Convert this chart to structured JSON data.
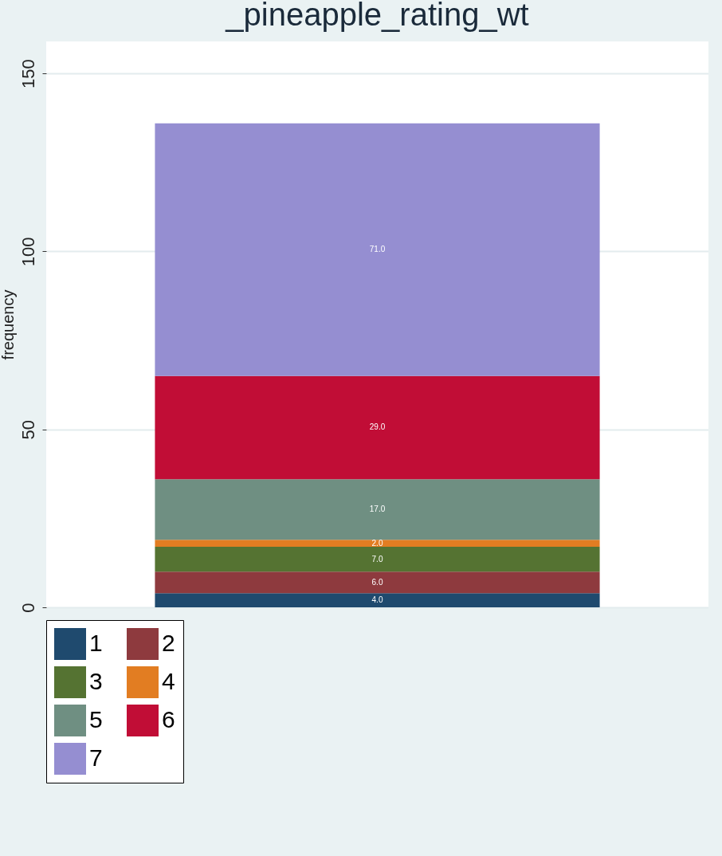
{
  "chart_data": {
    "type": "bar",
    "title": "_pineapple_rating_wt",
    "ylabel": "frequency",
    "categories": [
      null
    ],
    "stacked": true,
    "ylim": [
      0,
      159
    ],
    "yticks": [
      0,
      50,
      100,
      150
    ],
    "grid": "y",
    "legend": "bottom",
    "series": [
      {
        "name": "1",
        "color": "#1f4a6e",
        "values": [
          4
        ],
        "value_labels": [
          "4.0"
        ]
      },
      {
        "name": "2",
        "color": "#8e3a3e",
        "values": [
          6
        ],
        "value_labels": [
          "6.0"
        ]
      },
      {
        "name": "3",
        "color": "#557332",
        "values": [
          7
        ],
        "value_labels": [
          "7.0"
        ]
      },
      {
        "name": "4",
        "color": "#e27d22",
        "values": [
          2
        ],
        "value_labels": [
          "2.0"
        ]
      },
      {
        "name": "5",
        "color": "#6f8f82",
        "values": [
          17
        ],
        "value_labels": [
          "17.0"
        ]
      },
      {
        "name": "6",
        "color": "#c10d36",
        "values": [
          29
        ],
        "value_labels": [
          "29.0"
        ]
      },
      {
        "name": "7",
        "color": "#958ed1",
        "values": [
          71
        ],
        "value_labels": [
          "71.0"
        ]
      }
    ]
  }
}
